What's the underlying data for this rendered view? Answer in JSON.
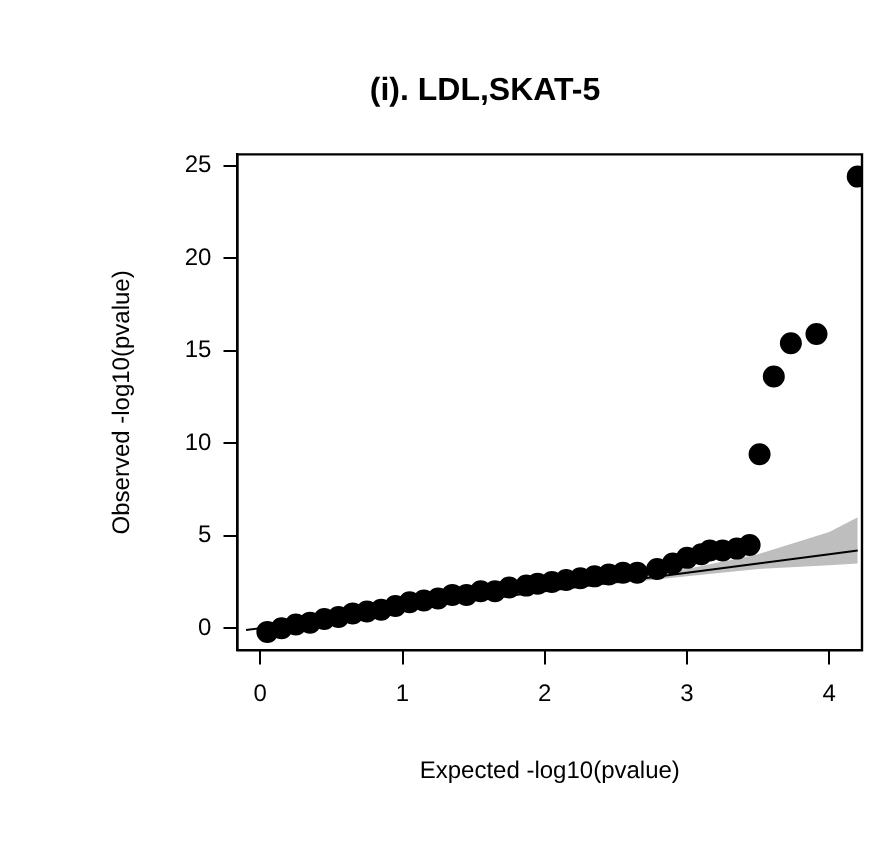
{
  "chart_data": {
    "type": "scatter",
    "title": "(i). LDL,SKAT-5",
    "xlabel": "Expected -log10(pvalue)",
    "ylabel": "Observed -log10(pvalue)",
    "xlim": [
      -0.16,
      4.23
    ],
    "ylim": [
      -1.2,
      25.6
    ],
    "xticks": [
      0,
      1,
      2,
      3,
      4
    ],
    "yticks": [
      0,
      5,
      10,
      15,
      20,
      25
    ],
    "grid": false,
    "legend": false,
    "marker": "circle",
    "series": [
      {
        "type": "line",
        "color": "#000000",
        "x": [
          -0.1,
          1,
          2,
          2.5,
          3,
          3.5,
          4,
          4.2
        ],
        "values": [
          -0.1,
          1,
          2,
          2.5,
          3,
          3.5,
          4,
          4.2
        ],
        "lower": [
          -0.1,
          1,
          2,
          2.4,
          2.8,
          3.2,
          3.4,
          3.5
        ],
        "upper": [
          -0.1,
          1,
          2,
          2.6,
          3.2,
          4,
          5.2,
          6
        ],
        "marker": "none"
      },
      {
        "type": "scatter",
        "color": "#000000",
        "x": [
          0.05,
          0.15,
          0.25,
          0.35,
          0.45,
          0.55,
          0.65,
          0.75,
          0.85,
          0.95,
          1.05,
          1.15,
          1.25,
          1.35,
          1.45,
          1.55,
          1.65,
          1.75,
          1.87,
          1.95,
          2.05,
          2.15,
          2.25,
          2.35,
          2.45,
          2.55,
          2.65,
          2.79,
          2.9,
          3.0,
          3.1,
          3.16,
          3.25,
          3.35,
          3.44,
          3.51,
          3.61,
          3.73,
          3.91,
          4.2
        ],
        "values": [
          -0.2,
          0,
          0.2,
          0.3,
          0.5,
          0.6,
          0.8,
          0.9,
          1,
          1.2,
          1.4,
          1.5,
          1.6,
          1.8,
          1.8,
          2,
          2,
          2.2,
          2.3,
          2.4,
          2.5,
          2.6,
          2.7,
          2.8,
          2.9,
          3,
          3,
          3.2,
          3.5,
          3.8,
          4,
          4.2,
          4.2,
          4.3,
          4.5,
          9.4,
          13.6,
          15.4,
          15.9,
          24.4
        ]
      }
    ]
  }
}
